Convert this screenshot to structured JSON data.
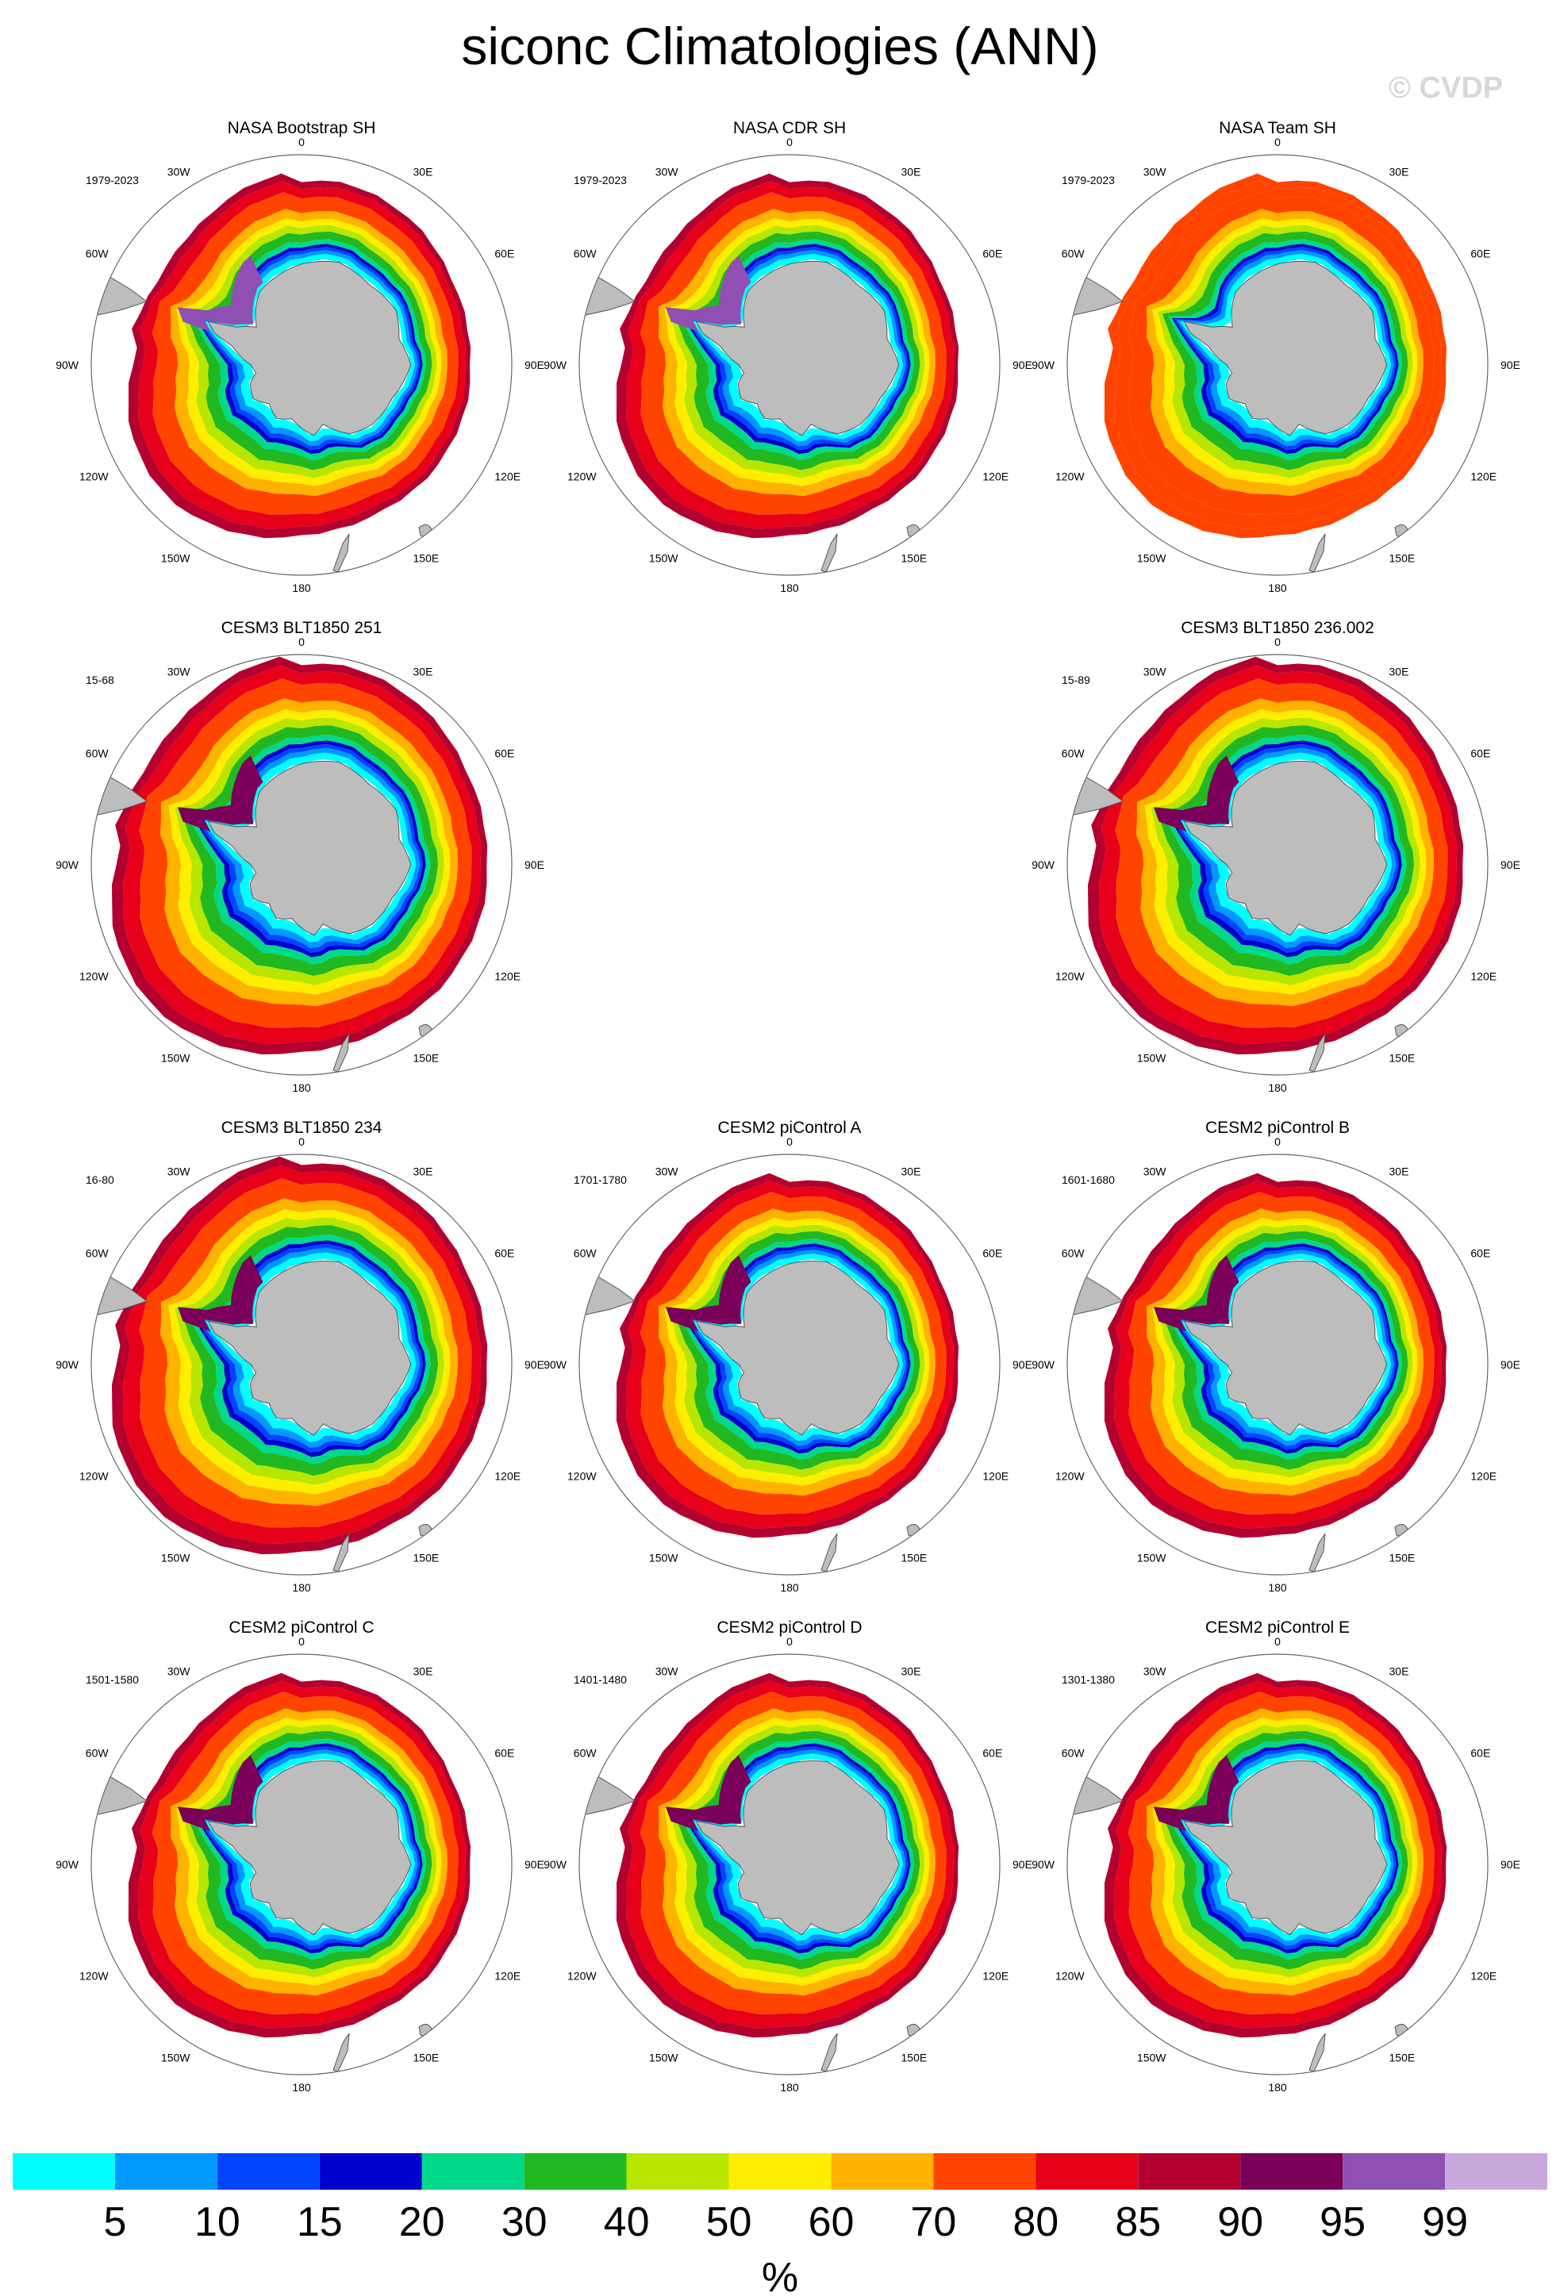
{
  "title": "siconc Climatologies (ANN)",
  "watermark": "© CVDP",
  "colors": {
    "land": "#bdbdbd",
    "land_edge": "#555555",
    "circle": "#666666"
  },
  "lon_labels": [
    "0",
    "30E",
    "60E",
    "90E",
    "120E",
    "150E",
    "180",
    "150W",
    "120W",
    "90W",
    "60W",
    "30W"
  ],
  "panels": [
    {
      "title": "NASA Bootstrap SH",
      "period": "1979-2023",
      "style": "obs"
    },
    {
      "title": "NASA CDR SH",
      "period": "1979-2023",
      "style": "obs"
    },
    {
      "title": "NASA Team SH",
      "period": "1979-2023",
      "style": "team"
    },
    {
      "title": "CESM3 BLT1850 251",
      "period": "15-68",
      "style": "big"
    },
    {
      "title": "CESM3 BLT1850 236.002",
      "period": "15-89",
      "style": "big"
    },
    {
      "title": "CESM3 BLT1850 234",
      "period": "16-80",
      "style": "big"
    },
    {
      "title": "CESM2 piControl A",
      "period": "1701-1780",
      "style": "model"
    },
    {
      "title": "CESM2 piControl B",
      "period": "1601-1680",
      "style": "model"
    },
    {
      "title": "CESM2 piControl C",
      "period": "1501-1580",
      "style": "model"
    },
    {
      "title": "CESM2 piControl D",
      "period": "1401-1480",
      "style": "model"
    },
    {
      "title": "CESM2 piControl E",
      "period": "1301-1380",
      "style": "model"
    }
  ],
  "colorbar": {
    "unit": "%",
    "labels": [
      "5",
      "10",
      "15",
      "20",
      "30",
      "40",
      "50",
      "60",
      "70",
      "80",
      "85",
      "90",
      "95",
      "99"
    ],
    "colors": [
      "#00ffff",
      "#0099ff",
      "#0044ff",
      "#0000cc",
      "#00d98a",
      "#22b822",
      "#b8e600",
      "#ffee00",
      "#ffb300",
      "#ff4400",
      "#e60019",
      "#b3002e",
      "#7a0059",
      "#8f4fb3",
      "#c9a8dc"
    ]
  }
}
